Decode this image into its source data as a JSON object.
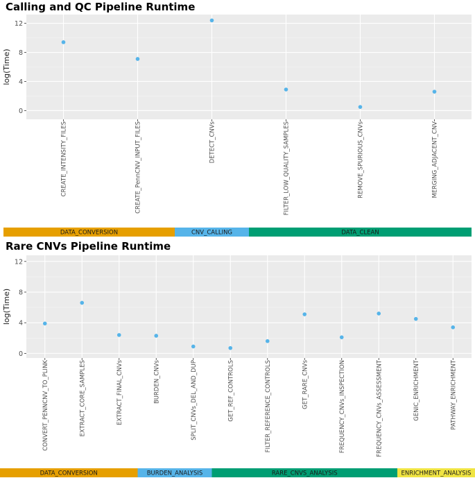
{
  "chart_data": [
    {
      "type": "scatter",
      "title": "Calling and QC Pipeline Runtime",
      "xlabel": "",
      "ylabel": "log(Time)",
      "ylim": [
        -1.2,
        13.2
      ],
      "yticks": [
        0,
        4,
        8,
        12
      ],
      "grid": true,
      "point_color": "#56B4E9",
      "categories": [
        "CREATE_INTENSITY_FILES",
        "CREATE_PennCNV_INPUT_FILES",
        "DETECT_CNVs",
        "FILTER_LOW_QUALITY_SAMPLES",
        "REMOVE_SPURIOUS_CNVs",
        "MERGING_ADJACENT_CNV"
      ],
      "values": [
        9.4,
        7.1,
        12.4,
        2.9,
        0.5,
        2.6
      ],
      "stages": [
        {
          "label": "DATA_CONVERSION",
          "span": [
            0,
            2
          ],
          "color": "#E69F00"
        },
        {
          "label": "CNV_CALLING",
          "span": [
            2,
            3
          ],
          "color": "#56B4E9"
        },
        {
          "label": "DATA_CLEAN",
          "span": [
            3,
            6
          ],
          "color": "#009E73"
        }
      ]
    },
    {
      "type": "scatter",
      "title": "Rare CNVs Pipeline Runtime",
      "xlabel": "",
      "ylabel": "log(Time)",
      "ylim": [
        -0.6,
        12.8
      ],
      "yticks": [
        0,
        4,
        8,
        12
      ],
      "grid": true,
      "point_color": "#56B4E9",
      "categories": [
        "CONVERT_PENNCNV_TO_PLINK",
        "EXTRACT_CORE_SAMPLES",
        "EXTRACT_FINAL_CNVs",
        "BURDEN_CNVs",
        "SPLIT_CNVs_DEL_AND_DUP",
        "GET_REF_CONTROLS",
        "FILTER_REFERENCE_CONTROLS",
        "GET_RARE_CNVs",
        "FREQUENCY_CNVs_INSPECTION",
        "FREQUENCY_CNVs_ASSESSMENT",
        "GENIC_ENRICHMENT",
        "PATHWAY_ENRICHMENT"
      ],
      "values": [
        3.9,
        6.6,
        2.4,
        2.3,
        0.9,
        0.7,
        1.6,
        5.1,
        2.1,
        5.2,
        4.5,
        3.4
      ],
      "stages": [
        {
          "label": "DATA_CONVERSION",
          "span": [
            0,
            3
          ],
          "color": "#E69F00"
        },
        {
          "label": "BURDEN_ANALYSIS",
          "span": [
            3,
            5
          ],
          "color": "#56B4E9"
        },
        {
          "label": "RARE_CNVS_ANALYSIS",
          "span": [
            5,
            10
          ],
          "color": "#009E73"
        },
        {
          "label": "ENRICHMENT_ANALYSIS",
          "span": [
            10,
            12
          ],
          "color": "#F0E442"
        }
      ]
    }
  ]
}
